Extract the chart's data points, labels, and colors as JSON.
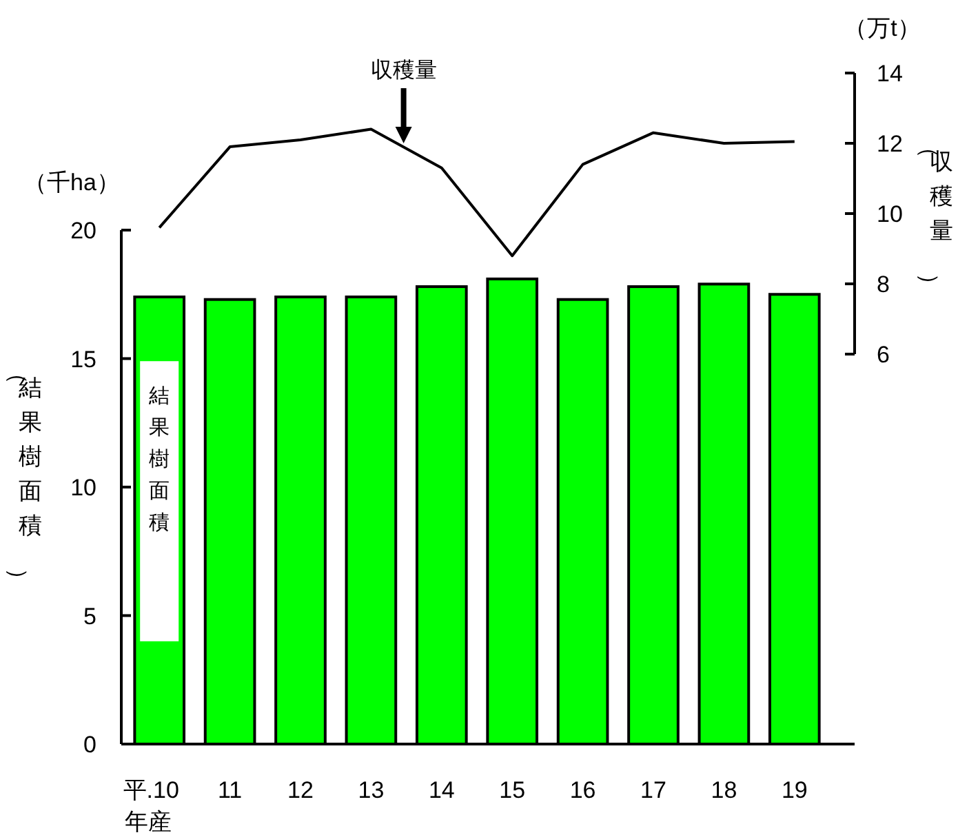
{
  "chart_data": [
    {
      "type": "bar",
      "categories": [
        "平.10",
        "11",
        "12",
        "13",
        "14",
        "15",
        "16",
        "17",
        "18",
        "19"
      ],
      "xlabel": "年産",
      "grid": false,
      "legend": false,
      "ylabel": "（結果樹面積）",
      "ylim": [
        0,
        20
      ],
      "yticks": [
        0,
        5,
        10,
        15,
        20
      ],
      "annotations": [
        "（千ha）"
      ],
      "series": [
        {
          "name": "結果樹面積",
          "color": "#00ff00",
          "values": [
            17.4,
            17.3,
            17.4,
            17.4,
            17.8,
            18.1,
            17.3,
            17.8,
            17.9,
            17.5
          ]
        }
      ]
    },
    {
      "type": "line",
      "categories": [
        null,
        null,
        null,
        null,
        null,
        null,
        null,
        null,
        null,
        null
      ],
      "grid": false,
      "legend": false,
      "ylabel": "（収穫量）",
      "ylim": [
        6,
        14
      ],
      "yticks": [
        6,
        8,
        10,
        12,
        14
      ],
      "annotations": [
        "（万t）"
      ],
      "series": [
        {
          "name": "収穫量",
          "color": "#000000",
          "values": [
            9.6,
            11.9,
            12.1,
            12.4,
            11.3,
            8.8,
            11.4,
            12.3,
            12.0,
            12.05
          ]
        }
      ]
    }
  ]
}
